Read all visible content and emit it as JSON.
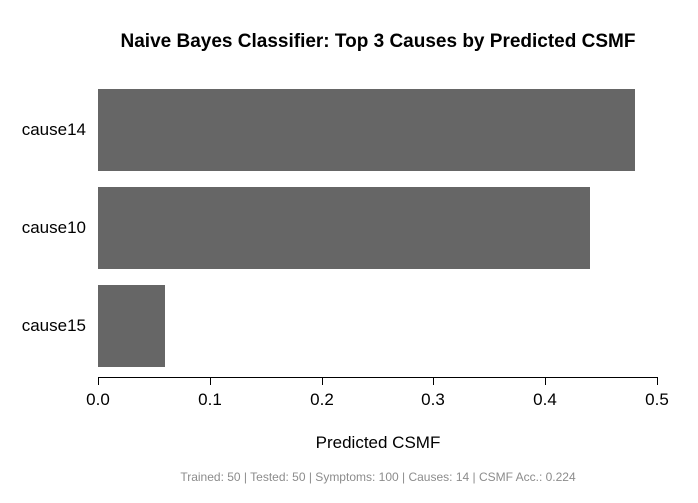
{
  "chart_data": {
    "type": "bar",
    "orientation": "horizontal",
    "title": "Naive Bayes Classifier: Top 3 Causes by Predicted CSMF",
    "categories": [
      "cause14",
      "cause10",
      "cause15"
    ],
    "values": [
      0.48,
      0.44,
      0.06
    ],
    "xlabel": "Predicted CSMF",
    "ylabel": "",
    "xlim": [
      0.0,
      0.5
    ],
    "x_ticks": [
      "0.0",
      "0.1",
      "0.2",
      "0.3",
      "0.4",
      "0.5"
    ],
    "x_tick_values": [
      0.0,
      0.1,
      0.2,
      0.3,
      0.4,
      0.5
    ],
    "bar_color": "#666666",
    "axis_color": "#000000",
    "grid": false,
    "legend": false
  },
  "footer": {
    "text": "Trained: 50 | Tested: 50 | Symptoms: 100 | Causes: 14 | CSMF Acc.: 0.224",
    "color": "#8c8c8c"
  }
}
